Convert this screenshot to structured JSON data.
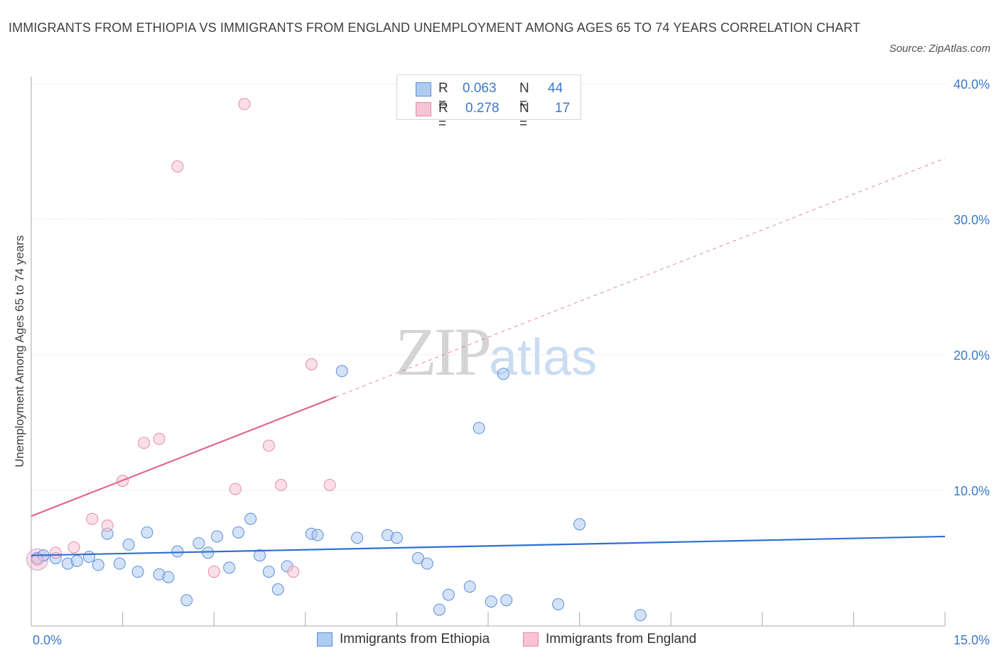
{
  "chart_data": {
    "type": "scatter",
    "title": "IMMIGRANTS FROM ETHIOPIA VS IMMIGRANTS FROM ENGLAND UNEMPLOYMENT AMONG AGES 65 TO 74 YEARS CORRELATION CHART",
    "source": "Source: ZipAtlas.com",
    "xlabel": "",
    "ylabel": "Unemployment Among Ages 65 to 74 years",
    "xlim": [
      0,
      15
    ],
    "ylim": [
      0,
      40
    ],
    "x_tick_labels": [
      "0.0%",
      "15.0%"
    ],
    "y_tick_values": [
      10,
      20,
      30,
      40
    ],
    "y_tick_labels": [
      "10.0%",
      "20.0%",
      "30.0%",
      "40.0%"
    ],
    "grid": true,
    "legend_top": [
      {
        "r_label": "R =",
        "r_value": "0.063",
        "n_label": "N =",
        "n_value": "44"
      },
      {
        "r_label": "R =",
        "r_value": "0.278",
        "n_label": "N =",
        "n_value": "17"
      }
    ],
    "series": [
      {
        "name": "Immigrants from Ethiopia",
        "fill": "#aecbf0",
        "stroke": "#5b8fd6",
        "trend_color": "#2f6fcf",
        "trend": {
          "x0": 0,
          "y0": 5.2,
          "x1": 15,
          "y1": 6.6,
          "dashed_from": null
        },
        "points": [
          [
            0.1,
            5.0
          ],
          [
            0.2,
            5.2
          ],
          [
            0.4,
            5.0
          ],
          [
            0.6,
            4.6
          ],
          [
            0.75,
            4.8
          ],
          [
            0.95,
            5.1
          ],
          [
            1.1,
            4.5
          ],
          [
            1.25,
            6.8
          ],
          [
            1.45,
            4.6
          ],
          [
            1.6,
            6.0
          ],
          [
            1.75,
            4.0
          ],
          [
            1.9,
            6.9
          ],
          [
            2.1,
            3.8
          ],
          [
            2.25,
            3.6
          ],
          [
            2.4,
            5.5
          ],
          [
            2.55,
            1.9
          ],
          [
            2.75,
            6.1
          ],
          [
            2.9,
            5.4
          ],
          [
            3.05,
            6.6
          ],
          [
            3.25,
            4.3
          ],
          [
            3.4,
            6.9
          ],
          [
            3.6,
            7.9
          ],
          [
            3.75,
            5.2
          ],
          [
            3.9,
            4.0
          ],
          [
            4.05,
            2.7
          ],
          [
            4.2,
            4.4
          ],
          [
            4.6,
            6.8
          ],
          [
            4.7,
            6.7
          ],
          [
            5.1,
            18.8
          ],
          [
            5.35,
            6.5
          ],
          [
            5.85,
            6.7
          ],
          [
            6.0,
            6.5
          ],
          [
            6.35,
            5.0
          ],
          [
            6.5,
            4.6
          ],
          [
            6.7,
            1.2
          ],
          [
            6.85,
            2.3
          ],
          [
            7.2,
            2.9
          ],
          [
            7.35,
            14.6
          ],
          [
            7.55,
            1.8
          ],
          [
            7.75,
            18.6
          ],
          [
            7.8,
            1.9
          ],
          [
            8.65,
            1.6
          ],
          [
            9.0,
            7.5
          ],
          [
            10.0,
            0.8
          ]
        ]
      },
      {
        "name": "Immigrants from England",
        "fill": "#f8c4d4",
        "stroke": "#e48aa8",
        "trend_color": "#e06890",
        "trend": {
          "x0": 0,
          "y0": 8.1,
          "x1": 15,
          "y1": 34.5,
          "dashed_from": 5.0
        },
        "points": [
          [
            0.1,
            4.9
          ],
          [
            0.4,
            5.4
          ],
          [
            0.7,
            5.8
          ],
          [
            1.0,
            7.9
          ],
          [
            1.25,
            7.4
          ],
          [
            1.5,
            10.7
          ],
          [
            1.85,
            13.5
          ],
          [
            2.1,
            13.8
          ],
          [
            2.4,
            33.9
          ],
          [
            3.0,
            4.0
          ],
          [
            3.35,
            10.1
          ],
          [
            3.5,
            38.5
          ],
          [
            3.9,
            13.3
          ],
          [
            4.1,
            10.4
          ],
          [
            4.3,
            4.0
          ],
          [
            4.6,
            19.3
          ],
          [
            4.9,
            10.4
          ]
        ]
      }
    ]
  },
  "watermark": {
    "part1": "ZIP",
    "part2": "atlas"
  }
}
